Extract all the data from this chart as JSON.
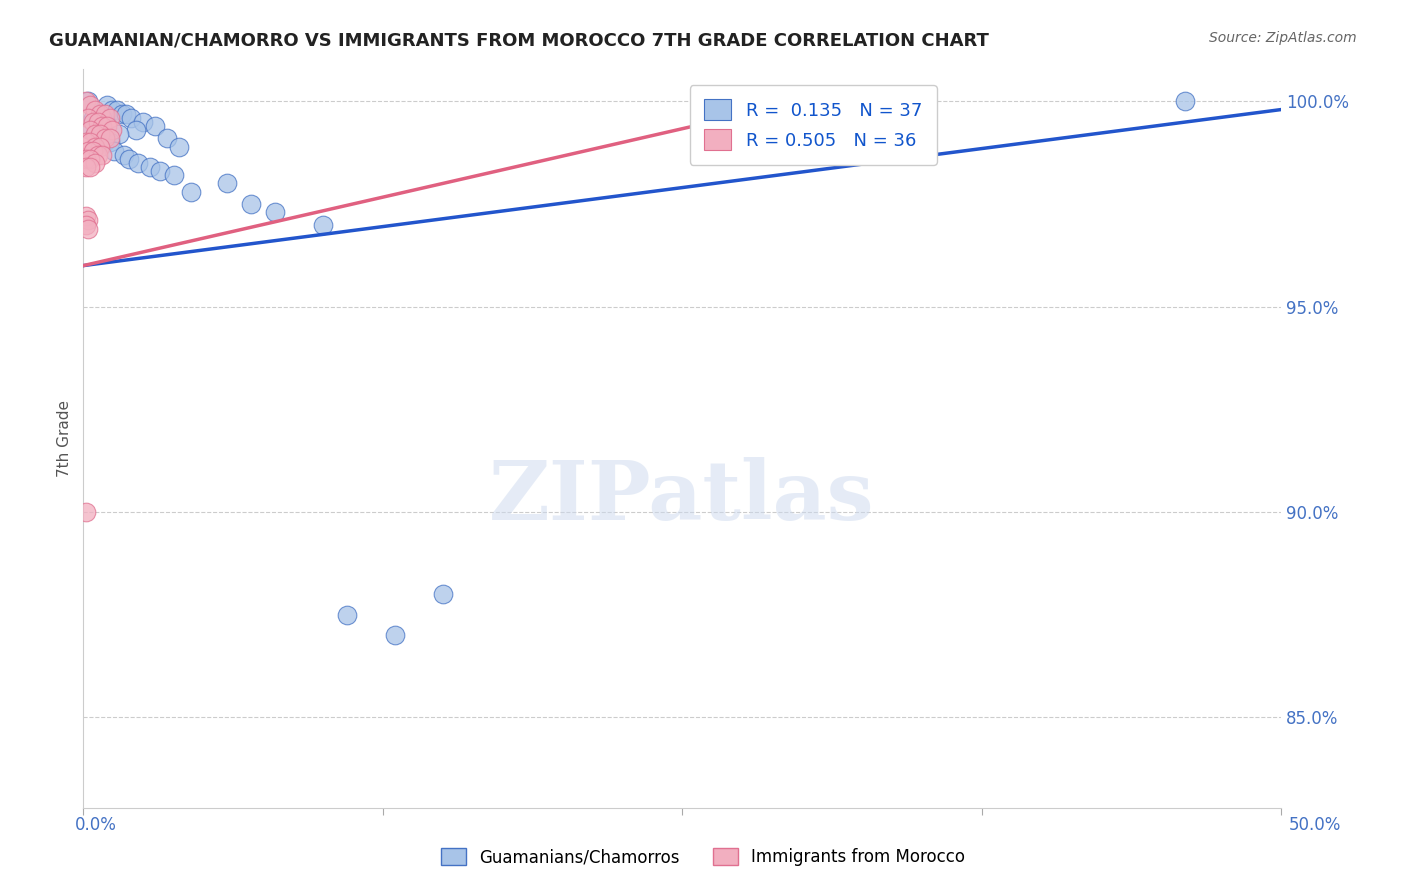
{
  "title": "GUAMANIAN/CHAMORRO VS IMMIGRANTS FROM MOROCCO 7TH GRADE CORRELATION CHART",
  "source": "Source: ZipAtlas.com",
  "ylabel": "7th Grade",
  "ytick_labels": [
    "85.0%",
    "90.0%",
    "95.0%",
    "100.0%"
  ],
  "ytick_values": [
    0.85,
    0.9,
    0.95,
    1.0
  ],
  "grid_yticks": [
    0.85,
    0.9,
    0.95,
    1.0
  ],
  "xlim": [
    0.0,
    0.5
  ],
  "ylim": [
    0.828,
    1.008
  ],
  "blue_R": 0.135,
  "blue_N": 37,
  "pink_R": 0.505,
  "pink_N": 36,
  "blue_color": "#a8c4e8",
  "pink_color": "#f2afc0",
  "blue_edge_color": "#4472c4",
  "pink_edge_color": "#e07090",
  "blue_line_color": "#2255cc",
  "pink_line_color": "#e06080",
  "legend_R_color": "#1155cc",
  "blue_scatter": [
    [
      0.002,
      1.0
    ],
    [
      0.01,
      0.999
    ],
    [
      0.012,
      0.998
    ],
    [
      0.014,
      0.998
    ],
    [
      0.016,
      0.997
    ],
    [
      0.018,
      0.997
    ],
    [
      0.004,
      0.996
    ],
    [
      0.008,
      0.996
    ],
    [
      0.02,
      0.996
    ],
    [
      0.025,
      0.995
    ],
    [
      0.03,
      0.994
    ],
    [
      0.003,
      0.993
    ],
    [
      0.006,
      0.993
    ],
    [
      0.022,
      0.993
    ],
    [
      0.005,
      0.992
    ],
    [
      0.015,
      0.992
    ],
    [
      0.007,
      0.991
    ],
    [
      0.035,
      0.991
    ],
    [
      0.009,
      0.99
    ],
    [
      0.011,
      0.99
    ],
    [
      0.04,
      0.989
    ],
    [
      0.013,
      0.988
    ],
    [
      0.017,
      0.987
    ],
    [
      0.019,
      0.986
    ],
    [
      0.023,
      0.985
    ],
    [
      0.028,
      0.984
    ],
    [
      0.032,
      0.983
    ],
    [
      0.038,
      0.982
    ],
    [
      0.06,
      0.98
    ],
    [
      0.045,
      0.978
    ],
    [
      0.07,
      0.975
    ],
    [
      0.08,
      0.973
    ],
    [
      0.1,
      0.97
    ],
    [
      0.11,
      0.875
    ],
    [
      0.13,
      0.87
    ],
    [
      0.46,
      1.0
    ],
    [
      0.15,
      0.88
    ]
  ],
  "pink_scatter": [
    [
      0.001,
      1.0
    ],
    [
      0.003,
      0.999
    ],
    [
      0.005,
      0.998
    ],
    [
      0.007,
      0.997
    ],
    [
      0.009,
      0.997
    ],
    [
      0.011,
      0.996
    ],
    [
      0.002,
      0.996
    ],
    [
      0.004,
      0.995
    ],
    [
      0.006,
      0.995
    ],
    [
      0.008,
      0.994
    ],
    [
      0.01,
      0.994
    ],
    [
      0.012,
      0.993
    ],
    [
      0.003,
      0.993
    ],
    [
      0.005,
      0.992
    ],
    [
      0.007,
      0.992
    ],
    [
      0.009,
      0.991
    ],
    [
      0.011,
      0.991
    ],
    [
      0.001,
      0.99
    ],
    [
      0.003,
      0.99
    ],
    [
      0.005,
      0.989
    ],
    [
      0.007,
      0.989
    ],
    [
      0.002,
      0.988
    ],
    [
      0.004,
      0.988
    ],
    [
      0.006,
      0.987
    ],
    [
      0.008,
      0.987
    ],
    [
      0.001,
      0.986
    ],
    [
      0.003,
      0.986
    ],
    [
      0.005,
      0.985
    ],
    [
      0.001,
      0.984
    ],
    [
      0.003,
      0.984
    ],
    [
      0.001,
      0.972
    ],
    [
      0.002,
      0.971
    ],
    [
      0.001,
      0.97
    ],
    [
      0.002,
      0.969
    ],
    [
      0.001,
      0.9
    ],
    [
      0.3,
      1.0
    ]
  ],
  "blue_trend_x": [
    0.0,
    0.5
  ],
  "blue_trend_y": [
    0.96,
    0.998
  ],
  "pink_trend_x": [
    0.0,
    0.3
  ],
  "pink_trend_y": [
    0.96,
    1.0
  ]
}
